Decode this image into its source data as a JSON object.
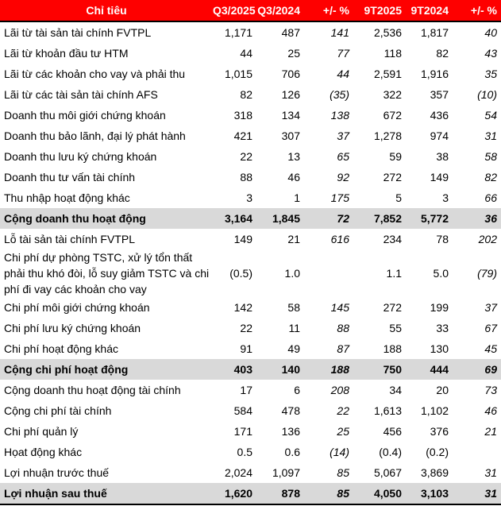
{
  "table": {
    "columns": [
      "Chỉ tiêu",
      "Q3/2025",
      "Q3/2024",
      "+/- %",
      "9T2025",
      "9T2024",
      "+/- %"
    ],
    "rows": [
      {
        "label": "Lãi từ tài sản tài chính FVTPL",
        "values": [
          "1,171",
          "487",
          "141",
          "2,536",
          "1,817",
          "40"
        ],
        "total": false
      },
      {
        "label": "Lãi từ khoản đầu tư HTM",
        "values": [
          "44",
          "25",
          "77",
          "118",
          "82",
          "43"
        ],
        "total": false
      },
      {
        "label": "Lãi từ các khoản cho vay và phải thu",
        "values": [
          "1,015",
          "706",
          "44",
          "2,591",
          "1,916",
          "35"
        ],
        "total": false
      },
      {
        "label": "Lãi từ các tài sản tài chính AFS",
        "values": [
          "82",
          "126",
          "(35)",
          "322",
          "357",
          "(10)"
        ],
        "total": false
      },
      {
        "label": "Doanh thu môi giới chứng khoán",
        "values": [
          "318",
          "134",
          "138",
          "672",
          "436",
          "54"
        ],
        "total": false
      },
      {
        "label": "Doanh thu bảo lãnh, đại lý phát hành",
        "values": [
          "421",
          "307",
          "37",
          "1,278",
          "974",
          "31"
        ],
        "total": false
      },
      {
        "label": "Doanh thu lưu ký chứng khoán",
        "values": [
          "22",
          "13",
          "65",
          "59",
          "38",
          "58"
        ],
        "total": false
      },
      {
        "label": "Doanh thu tư vấn tài chính",
        "values": [
          "88",
          "46",
          "92",
          "272",
          "149",
          "82"
        ],
        "total": false
      },
      {
        "label": "Thu nhập hoạt động khác",
        "values": [
          "3",
          "1",
          "175",
          "5",
          "3",
          "66"
        ],
        "total": false
      },
      {
        "label": "Cộng doanh thu hoạt động",
        "values": [
          "3,164",
          "1,845",
          "72",
          "7,852",
          "5,772",
          "36"
        ],
        "total": true
      },
      {
        "label": "Lỗ tài sản tài chính FVTPL",
        "values": [
          "149",
          "21",
          "616",
          "234",
          "78",
          "202"
        ],
        "total": false
      },
      {
        "label": "Chi phí dự phòng TSTC, xử lý tổn thất phải thu khó đòi, lỗ suy giảm TSTC và chi phí đi vay các khoản cho vay",
        "values": [
          "(0.5)",
          "1.0",
          "",
          "1.1",
          "5.0",
          "(79)"
        ],
        "total": false
      },
      {
        "label": "Chi phí môi giới chứng khoán",
        "values": [
          "142",
          "58",
          "145",
          "272",
          "199",
          "37"
        ],
        "total": false
      },
      {
        "label": "Chi phí lưu ký chứng khoán",
        "values": [
          "22",
          "11",
          "88",
          "55",
          "33",
          "67"
        ],
        "total": false
      },
      {
        "label": "Chi phí hoạt động khác",
        "values": [
          "91",
          "49",
          "87",
          "188",
          "130",
          "45"
        ],
        "total": false
      },
      {
        "label": "Cộng chi phí hoạt động",
        "values": [
          "403",
          "140",
          "188",
          "750",
          "444",
          "69"
        ],
        "total": true
      },
      {
        "label": "Cộng doanh thu hoạt động tài chính",
        "values": [
          "17",
          "6",
          "208",
          "34",
          "20",
          "73"
        ],
        "total": false
      },
      {
        "label": "Cộng chi phí tài chính",
        "values": [
          "584",
          "478",
          "22",
          "1,613",
          "1,102",
          "46"
        ],
        "total": false
      },
      {
        "label": "Chi phí quản lý",
        "values": [
          "171",
          "136",
          "25",
          "456",
          "376",
          "21"
        ],
        "total": false
      },
      {
        "label": "Họat động khác",
        "values": [
          "0.5",
          "0.6",
          "(14)",
          "(0.4)",
          "(0.2)",
          ""
        ],
        "total": false
      },
      {
        "label": "Lợi nhuận trước thuế",
        "values": [
          "2,024",
          "1,097",
          "85",
          "5,067",
          "3,869",
          "31"
        ],
        "total": false
      },
      {
        "label": "Lợi nhuận sau thuế",
        "values": [
          "1,620",
          "878",
          "85",
          "4,050",
          "3,103",
          "31"
        ],
        "total": true
      }
    ]
  },
  "colors": {
    "header_bg": "#fe0000",
    "header_text": "#ffffff",
    "total_row_bg": "#d9d9d9",
    "negative_text": "#ff0000",
    "body_text": "#000000",
    "border": "#000000"
  }
}
